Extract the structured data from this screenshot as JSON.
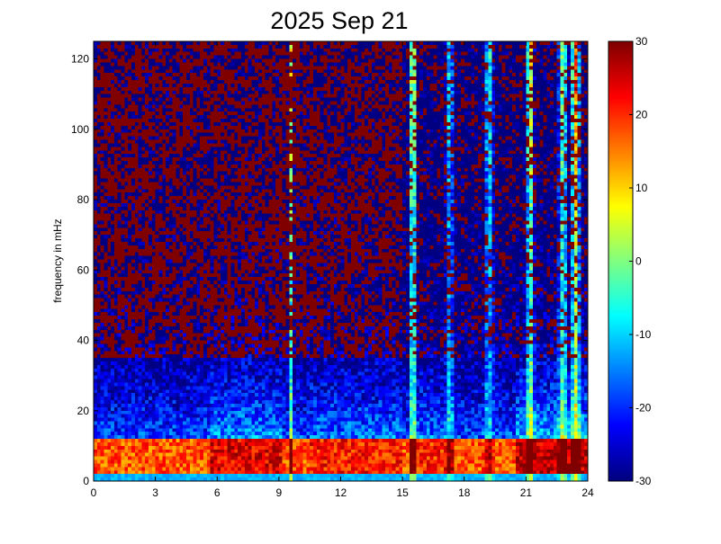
{
  "chart_data": {
    "type": "heatmap",
    "title": "2025 Sep 21",
    "xlabel": "",
    "ylabel": "frequency in mHz",
    "xlim": [
      0,
      24
    ],
    "ylim": [
      0,
      125
    ],
    "x_ticks": [
      "0",
      "3",
      "6",
      "9",
      "12",
      "15",
      "18",
      "21",
      "24"
    ],
    "y_ticks": [
      "0",
      "20",
      "40",
      "60",
      "80",
      "100",
      "120"
    ],
    "colorbar": {
      "colormap": "jet",
      "clim": [
        -30,
        30
      ],
      "ticks": [
        "30",
        "20",
        "10",
        "0",
        "-10",
        "-20",
        "-30"
      ]
    },
    "grid": false
  }
}
